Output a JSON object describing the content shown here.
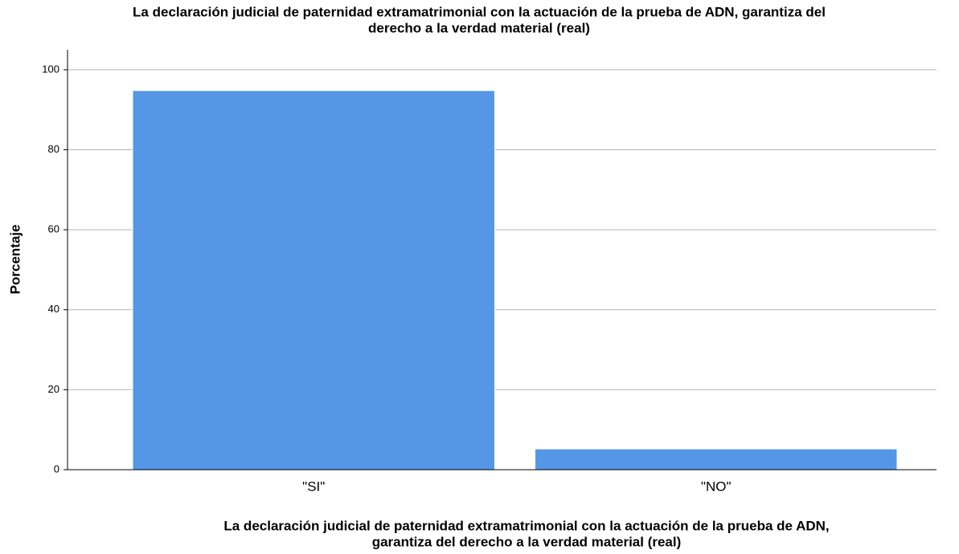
{
  "chart_data": {
    "type": "bar",
    "title": [
      "La declaración judicial de paternidad extramatrimonial con la actuación de la prueba de ADN, garantiza del",
      "derecho a la verdad material (real)"
    ],
    "x_label": [
      "La declaración judicial de paternidad extramatrimonial con la actuación de la prueba de ADN,",
      "garantiza del derecho a la verdad material (real)"
    ],
    "y_label": "Porcentaje",
    "categories": [
      "\"SI\"",
      "\"NO\""
    ],
    "values": [
      94.8,
      5.2
    ],
    "color": "#5596e6",
    "ylim": [
      0,
      105
    ],
    "yticks": [
      0,
      20,
      40,
      60,
      80,
      100
    ],
    "grid": true
  }
}
